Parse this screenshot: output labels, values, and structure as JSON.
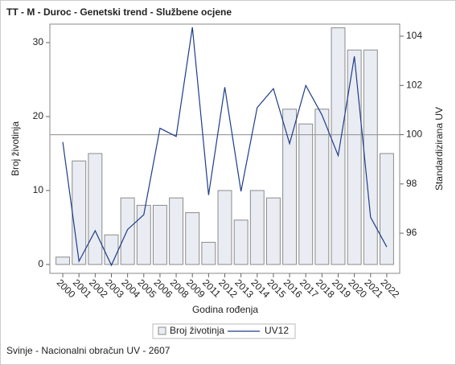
{
  "chart_data": {
    "type": "bar_line",
    "title": "TT - M - Duroc - Genetski trend - Službene ocjene",
    "x_label": "Godina rođenja",
    "y_label": "Broj životinja",
    "y2_label": "Standardizirana UV",
    "footnote": "Svinje - Nacionalni obračun UV - 2607",
    "categories": [
      "2000",
      "2001",
      "2002",
      "2003",
      "2004",
      "2005",
      "2006",
      "2008",
      "2009",
      "2011",
      "2012",
      "2013",
      "2014",
      "2015",
      "2016",
      "2017",
      "2018",
      "2019",
      "2020",
      "2021",
      "2022"
    ],
    "series": [
      {
        "name": "Broj životinja",
        "kind": "bar",
        "color": "#e9edf3",
        "edge": "#8a8a8a",
        "values": [
          1,
          14,
          15,
          4,
          9,
          8,
          8,
          9,
          7,
          3,
          10,
          6,
          10,
          9,
          21,
          19,
          21,
          32,
          29,
          29,
          15
        ]
      },
      {
        "name": "UV12",
        "kind": "line",
        "axis": "y2",
        "color": "#1f3c88",
        "values": [
          99.7,
          94.86,
          96.1,
          94.7,
          96.15,
          96.75,
          100.26,
          99.93,
          104.36,
          97.55,
          101.93,
          97.7,
          101.1,
          101.87,
          99.64,
          102.0,
          100.8,
          99.15,
          103.18,
          96.65,
          95.44
        ]
      }
    ],
    "reference_line": {
      "axis": "y2",
      "value": 100,
      "color": "#999999"
    },
    "ylim": [
      -1.2,
      32.5
    ],
    "yticks": [
      0,
      10,
      20,
      30
    ],
    "y2lim": [
      94.37,
      104.49
    ],
    "y2ticks": [
      96,
      98,
      100,
      102,
      104
    ],
    "legend": "bottom"
  }
}
